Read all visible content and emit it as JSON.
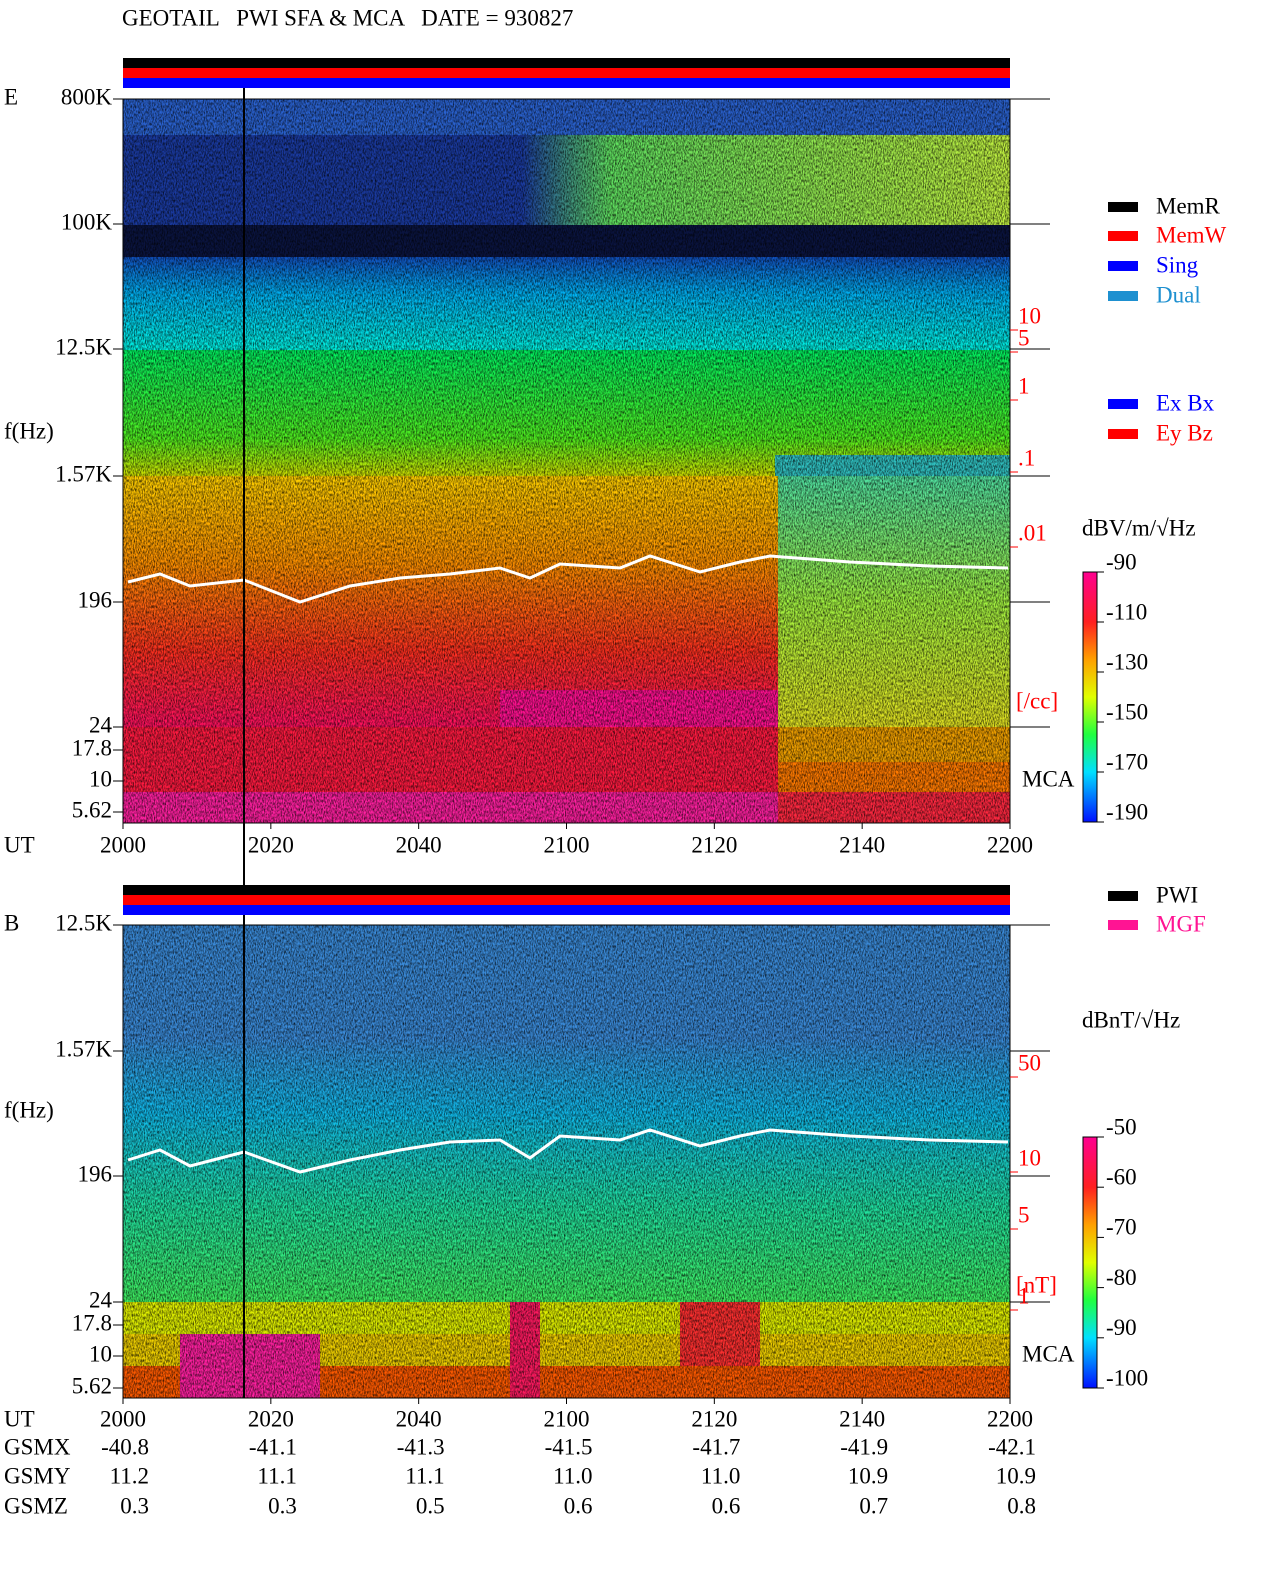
{
  "title": "GEOTAIL   PWI SFA & MCA   DATE = 930827",
  "panels": [
    {
      "label": "E",
      "ylabel": "f(Hz)",
      "yticks": [
        "800K",
        "100K",
        "12.5K",
        "1.57K",
        "196",
        "24",
        "17.8",
        "10",
        "5.62"
      ],
      "xlabel": "UT",
      "xticks": [
        "2000",
        "2020",
        "2040",
        "2100",
        "2120",
        "2140",
        "2200"
      ],
      "density_ticks": [
        "10",
        "5",
        "1",
        ".1",
        ".01"
      ],
      "density_unit": "[/cc]",
      "mca": "MCA",
      "legend": [
        {
          "name": "MemR",
          "color": "#000000"
        },
        {
          "name": "MemW",
          "color": "#ff0000"
        },
        {
          "name": "Sing",
          "color": "#0000ff"
        },
        {
          "name": "Dual",
          "color": "#1e90d0"
        }
      ],
      "legend2": [
        {
          "name": "Ex Bx",
          "color": "#0000ff"
        },
        {
          "name": "Ey Bz",
          "color": "#ff0000"
        }
      ],
      "colorbar_unit": "dBV/m/√Hz",
      "colorbar_ticks": [
        "-90",
        "-110",
        "-130",
        "-150",
        "-170",
        "-190"
      ]
    },
    {
      "label": "B",
      "ylabel": "f(Hz)",
      "yticks": [
        "12.5K",
        "1.57K",
        "196",
        "24",
        "17.8",
        "10",
        "5.62"
      ],
      "xlabel": "UT",
      "xticks": [
        "2000",
        "2020",
        "2040",
        "2100",
        "2120",
        "2140",
        "2200"
      ],
      "density_ticks": [
        "50",
        "10",
        "5",
        "1"
      ],
      "density_unit": "[nT]",
      "mca": "MCA",
      "legend": [
        {
          "name": "PWI",
          "color": "#000000"
        },
        {
          "name": "MGF",
          "color": "#ff1493"
        }
      ],
      "legend2": [],
      "colorbar_unit": "dBnT/√Hz",
      "colorbar_ticks": [
        "-50",
        "-60",
        "-70",
        "-80",
        "-90",
        "-100"
      ]
    }
  ],
  "orbit": [
    {
      "label": "GSMX",
      "values": [
        "-40.8",
        "-41.1",
        "-41.3",
        "-41.5",
        "-41.7",
        "-41.9",
        "-42.1"
      ]
    },
    {
      "label": "GSMY",
      "values": [
        "11.2",
        "11.1",
        "11.1",
        "11.0",
        "11.0",
        "10.9",
        "10.9"
      ]
    },
    {
      "label": "GSMZ",
      "values": [
        "0.3",
        "0.3",
        "0.5",
        "0.6",
        "0.6",
        "0.7",
        "0.8"
      ]
    }
  ]
}
